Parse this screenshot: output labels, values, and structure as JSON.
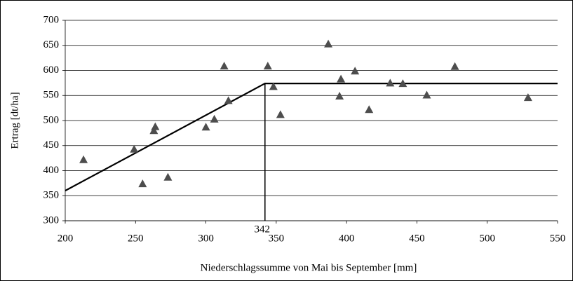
{
  "chart_data": {
    "type": "scatter",
    "x_label": "Niederschlagssumme von Mai bis September [mm]",
    "y_label": "Ertrag [dt/ha]",
    "x": [
      213,
      249,
      255,
      263,
      264,
      273,
      300,
      306,
      313,
      316,
      344,
      348,
      353,
      387,
      395,
      396,
      406,
      416,
      431,
      440,
      457,
      477,
      529
    ],
    "values": [
      422,
      443,
      374,
      480,
      488,
      387,
      487,
      503,
      609,
      540,
      609,
      568,
      512,
      653,
      549,
      583,
      599,
      522,
      575,
      574,
      551,
      608,
      546
    ],
    "color": "#4d4d4d",
    "fit": {
      "x": [
        200,
        342,
        550
      ],
      "y": [
        360,
        574,
        574
      ],
      "color": "#000000"
    },
    "breakpoint": {
      "x": 342,
      "y": 574
    },
    "xlim": [
      200,
      550
    ],
    "xticks": [
      200,
      250,
      300,
      350,
      400,
      450,
      500,
      550
    ],
    "ylim": [
      300,
      700
    ],
    "yticks": [
      300,
      350,
      400,
      450,
      500,
      550,
      600,
      650,
      700
    ],
    "grid": true
  }
}
